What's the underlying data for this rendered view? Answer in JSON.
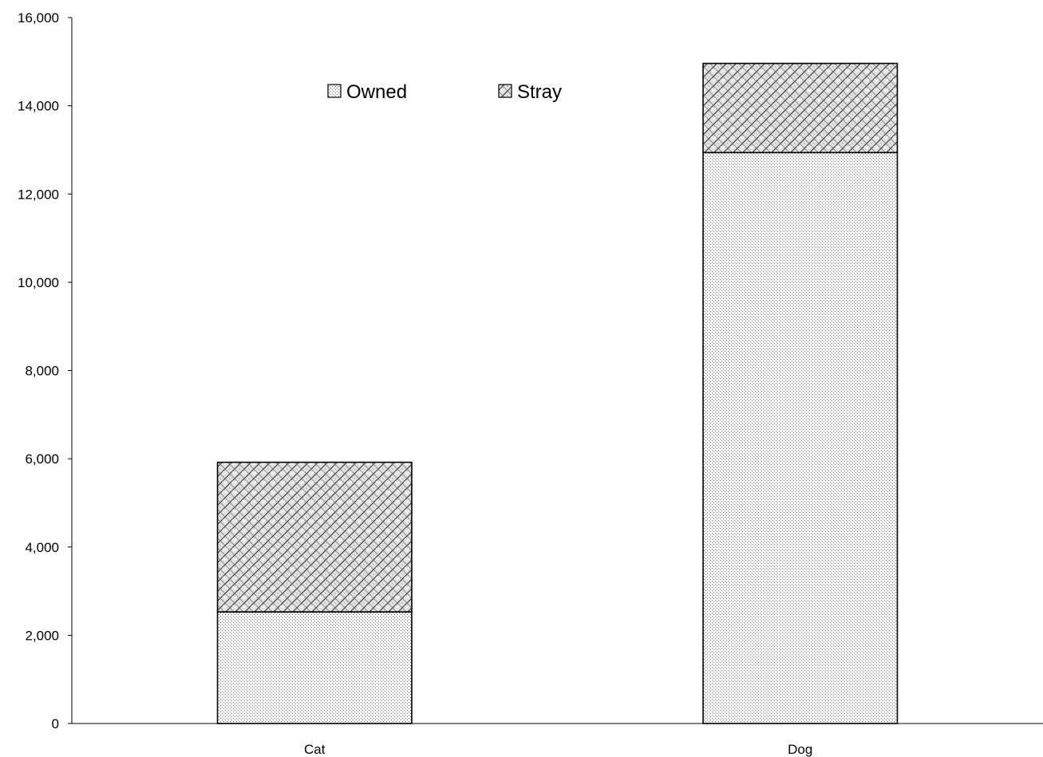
{
  "chart_data": {
    "type": "bar",
    "stacked": true,
    "categories": [
      "Cat",
      "Dog"
    ],
    "series": [
      {
        "name": "Owned",
        "values": [
          2530,
          12940
        ],
        "pattern": "fine-dots"
      },
      {
        "name": "Stray",
        "values": [
          3390,
          2020
        ],
        "pattern": "weave"
      }
    ],
    "title": "",
    "xlabel": "",
    "ylabel": "",
    "ylim": [
      0,
      16000
    ],
    "yticks": [
      0,
      2000,
      4000,
      6000,
      8000,
      10000,
      12000,
      14000,
      16000
    ],
    "ytick_labels": [
      "0",
      "2,000",
      "4,000",
      "6,000",
      "8,000",
      "10,000",
      "12,000",
      "14,000",
      "16,000"
    ],
    "grid": false,
    "legend_position": "top-center",
    "colors": {
      "axis": "#000000",
      "bar_outline": "#000000",
      "background": "#ffffff"
    }
  }
}
